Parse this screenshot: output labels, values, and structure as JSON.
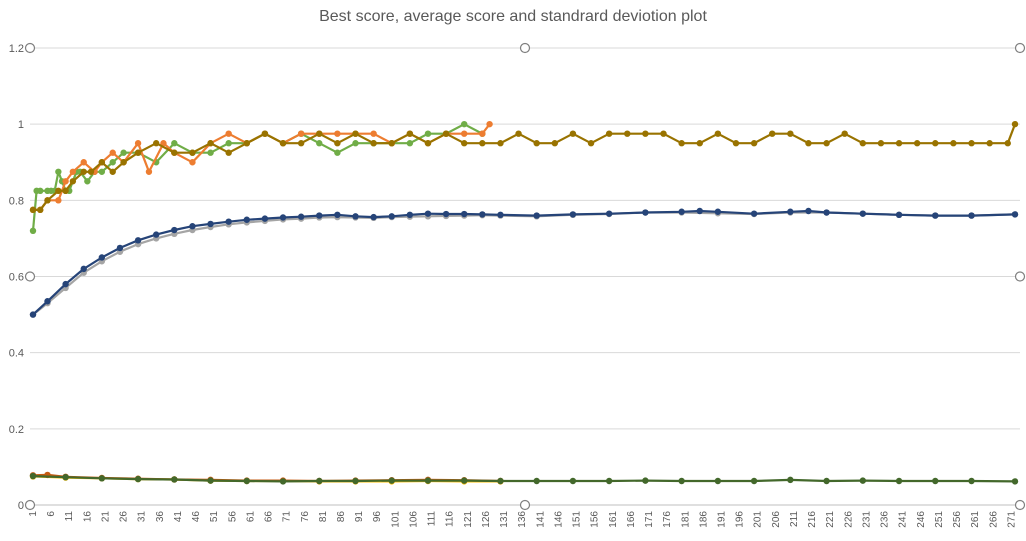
{
  "chart_data": {
    "type": "line",
    "title": "Best score, average score and standrard deviotion plot",
    "xlabel": "",
    "ylabel": "",
    "ylim": [
      0,
      1.2
    ],
    "yticks": [
      "0",
      "0.2",
      "0.4",
      "0.6",
      "0.8",
      "1",
      "1.2"
    ],
    "xlim": [
      1,
      272
    ],
    "xticks": [
      "1",
      "6",
      "11",
      "16",
      "21",
      "26",
      "31",
      "36",
      "41",
      "46",
      "51",
      "56",
      "61",
      "66",
      "71",
      "76",
      "81",
      "86",
      "91",
      "96",
      "101",
      "106",
      "111",
      "116",
      "121",
      "126",
      "131",
      "136",
      "141",
      "146",
      "151",
      "156",
      "161",
      "166",
      "171",
      "176",
      "181",
      "186",
      "191",
      "196",
      "201",
      "206",
      "211",
      "216",
      "221",
      "226",
      "231",
      "236",
      "241",
      "246",
      "251",
      "256",
      "261",
      "266",
      "271"
    ],
    "grid": "horizontal",
    "legend": "none",
    "series": [
      {
        "color": "#70ad47",
        "x": [
          1,
          2,
          3,
          5,
          6,
          7,
          8,
          9,
          10,
          11,
          13,
          14,
          16,
          18,
          20,
          23,
          26,
          30,
          35,
          40,
          45,
          50,
          55,
          60,
          65,
          70,
          75,
          80,
          85,
          90,
          95,
          100,
          105,
          110,
          115,
          120,
          125
        ],
        "values": [
          0.72,
          0.825,
          0.825,
          0.825,
          0.825,
          0.825,
          0.875,
          0.85,
          0.825,
          0.825,
          0.875,
          0.875,
          0.85,
          0.875,
          0.875,
          0.9,
          0.925,
          0.925,
          0.9,
          0.95,
          0.925,
          0.925,
          0.95,
          0.95,
          0.975,
          0.95,
          0.975,
          0.95,
          0.925,
          0.95,
          0.95,
          0.95,
          0.95,
          0.975,
          0.975,
          1.0,
          0.975
        ]
      },
      {
        "color": "#ed7d31",
        "x": [
          1,
          3,
          5,
          8,
          10,
          12,
          15,
          18,
          20,
          23,
          26,
          30,
          33,
          37,
          40,
          45,
          50,
          55,
          60,
          65,
          70,
          75,
          80,
          85,
          90,
          95,
          100,
          105,
          110,
          115,
          120,
          125,
          127
        ],
        "values": [
          0.775,
          0.775,
          0.8,
          0.8,
          0.85,
          0.875,
          0.9,
          0.875,
          0.9,
          0.925,
          0.9,
          0.95,
          0.875,
          0.95,
          0.925,
          0.9,
          0.95,
          0.975,
          0.95,
          0.975,
          0.95,
          0.975,
          0.975,
          0.975,
          0.975,
          0.975,
          0.95,
          0.975,
          0.95,
          0.975,
          0.975,
          0.975,
          1.0
        ]
      },
      {
        "color": "#997300",
        "x": [
          1,
          3,
          5,
          8,
          10,
          12,
          15,
          17,
          20,
          23,
          26,
          30,
          35,
          40,
          45,
          50,
          55,
          60,
          65,
          70,
          75,
          80,
          85,
          90,
          95,
          100,
          105,
          110,
          115,
          120,
          125,
          130,
          135,
          140,
          145,
          150,
          155,
          160,
          165,
          170,
          175,
          180,
          185,
          190,
          195,
          200,
          205,
          210,
          215,
          220,
          225,
          230,
          235,
          240,
          245,
          250,
          255,
          260,
          265,
          270,
          272
        ],
        "values": [
          0.775,
          0.775,
          0.8,
          0.825,
          0.825,
          0.85,
          0.875,
          0.875,
          0.9,
          0.875,
          0.9,
          0.925,
          0.95,
          0.925,
          0.925,
          0.95,
          0.925,
          0.95,
          0.975,
          0.95,
          0.95,
          0.975,
          0.95,
          0.975,
          0.95,
          0.95,
          0.975,
          0.95,
          0.975,
          0.95,
          0.95,
          0.95,
          0.975,
          0.95,
          0.95,
          0.975,
          0.95,
          0.975,
          0.975,
          0.975,
          0.975,
          0.95,
          0.95,
          0.975,
          0.95,
          0.95,
          0.975,
          0.975,
          0.95,
          0.95,
          0.975,
          0.95,
          0.95,
          0.95,
          0.95,
          0.95,
          0.95,
          0.95,
          0.95,
          0.95,
          1.0
        ]
      },
      {
        "color": "#a5a5a5",
        "x": [
          1,
          5,
          10,
          15,
          20,
          25,
          30,
          35,
          40,
          45,
          50,
          55,
          60,
          65,
          70,
          75,
          80,
          85,
          90,
          95,
          100,
          105,
          110,
          115,
          120,
          125,
          130,
          140,
          150,
          160,
          170,
          180,
          190,
          200,
          210,
          220,
          230,
          240,
          250,
          260,
          272
        ],
        "values": [
          0.5,
          0.53,
          0.57,
          0.61,
          0.64,
          0.665,
          0.685,
          0.7,
          0.712,
          0.722,
          0.73,
          0.737,
          0.742,
          0.746,
          0.75,
          0.752,
          0.755,
          0.756,
          0.755,
          0.754,
          0.756,
          0.757,
          0.758,
          0.759,
          0.76,
          0.761,
          0.76,
          0.758,
          0.762,
          0.764,
          0.768,
          0.768,
          0.766,
          0.764,
          0.768,
          0.768,
          0.765,
          0.762,
          0.76,
          0.76,
          0.763
        ]
      },
      {
        "color": "#264478",
        "x": [
          1,
          5,
          10,
          15,
          20,
          25,
          30,
          35,
          40,
          45,
          50,
          55,
          60,
          65,
          70,
          75,
          80,
          85,
          90,
          95,
          100,
          105,
          110,
          115,
          120,
          125,
          130,
          140,
          150,
          160,
          170,
          180,
          185,
          190,
          200,
          210,
          215,
          220,
          230,
          240,
          250,
          260,
          272
        ],
        "values": [
          0.5,
          0.535,
          0.58,
          0.62,
          0.65,
          0.675,
          0.695,
          0.71,
          0.722,
          0.732,
          0.738,
          0.744,
          0.749,
          0.752,
          0.755,
          0.757,
          0.76,
          0.762,
          0.758,
          0.756,
          0.758,
          0.762,
          0.765,
          0.764,
          0.764,
          0.763,
          0.762,
          0.76,
          0.763,
          0.765,
          0.768,
          0.77,
          0.772,
          0.77,
          0.765,
          0.77,
          0.772,
          0.768,
          0.765,
          0.762,
          0.76,
          0.76,
          0.763
        ]
      },
      {
        "color": "#ffc000",
        "x": [
          1,
          10,
          20,
          30,
          40,
          50,
          60,
          70,
          80,
          90,
          100,
          110,
          120,
          130
        ],
        "values": [
          0.075,
          0.072,
          0.07,
          0.068,
          0.067,
          0.064,
          0.063,
          0.063,
          0.062,
          0.062,
          0.062,
          0.063,
          0.062,
          0.062
        ]
      },
      {
        "color": "#c55a11",
        "x": [
          1,
          5,
          10,
          20,
          30,
          40,
          50,
          60,
          70,
          80,
          90,
          100,
          110,
          120,
          130
        ],
        "values": [
          0.078,
          0.079,
          0.074,
          0.071,
          0.069,
          0.067,
          0.066,
          0.064,
          0.064,
          0.063,
          0.064,
          0.065,
          0.066,
          0.065,
          0.063
        ]
      },
      {
        "color": "#43682b",
        "x": [
          1,
          10,
          20,
          30,
          40,
          50,
          60,
          70,
          80,
          90,
          100,
          110,
          120,
          130,
          140,
          150,
          160,
          170,
          180,
          190,
          200,
          210,
          220,
          230,
          240,
          250,
          260,
          272
        ],
        "values": [
          0.076,
          0.073,
          0.07,
          0.068,
          0.067,
          0.064,
          0.063,
          0.062,
          0.063,
          0.063,
          0.064,
          0.064,
          0.064,
          0.063,
          0.063,
          0.063,
          0.063,
          0.064,
          0.063,
          0.063,
          0.063,
          0.066,
          0.063,
          0.064,
          0.063,
          0.063,
          0.063,
          0.062
        ]
      }
    ]
  }
}
